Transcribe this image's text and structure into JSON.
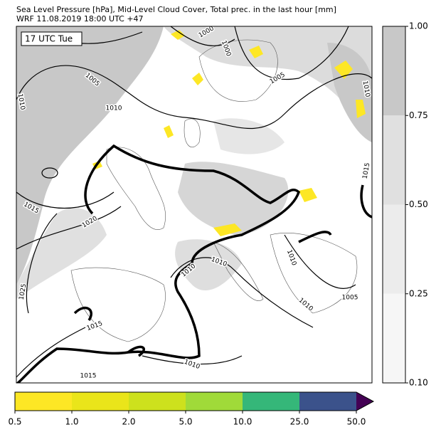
{
  "header": {
    "title": "Sea Level Pressure [hPa], Mid-Level Cloud Cover, Total prec. in the last hour [mm]",
    "subtitle": "WRF 11.08.2019 18:00 UTC +47"
  },
  "map": {
    "time_label": "17 UTC Tue",
    "isobar_labels": [
      "1000",
      "1000",
      "1005",
      "1005",
      "1010",
      "1010",
      "1010",
      "1015",
      "1020",
      "1015",
      "1010",
      "1010",
      "1025",
      "1015",
      "1005",
      "1010",
      "1010",
      "1015",
      "1010"
    ]
  },
  "cloud_colorbar": {
    "ticks": [
      "0.10",
      "0.25",
      "0.50",
      "0.75",
      "1.00"
    ],
    "colors": [
      "#f6f6f6",
      "#ececec",
      "#e0e0e0",
      "#c8c8c8"
    ]
  },
  "precip_colorbar": {
    "ticks": [
      "0.5",
      "1.0",
      "2.0",
      "5.0",
      "10.0",
      "25.0",
      "50.0"
    ],
    "colors": [
      "#fde725",
      "#eae51a",
      "#cde11d",
      "#a0da39",
      "#35b779",
      "#3b528b"
    ],
    "extend_color": "#440154"
  }
}
